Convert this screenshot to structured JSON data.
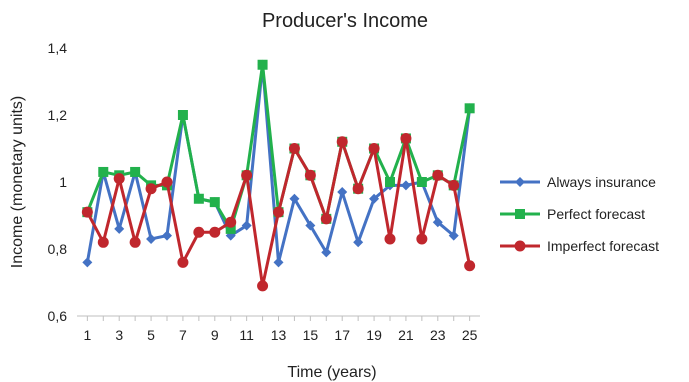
{
  "chart_data": {
    "type": "line",
    "title": "Producer's Income",
    "xlabel": "Time (years)",
    "ylabel": "Income (monetary units)",
    "ylim": [
      0.6,
      1.4
    ],
    "yticks": [
      0.6,
      0.8,
      1.0,
      1.2,
      1.4
    ],
    "ytick_labels": [
      "0,6",
      "0,8",
      "1",
      "1,2",
      "1,4"
    ],
    "x": [
      1,
      2,
      3,
      4,
      5,
      6,
      7,
      8,
      9,
      10,
      11,
      12,
      13,
      14,
      15,
      16,
      17,
      18,
      19,
      20,
      21,
      22,
      23,
      24,
      25
    ],
    "xtick_labels": [
      "1",
      "3",
      "5",
      "7",
      "9",
      "11",
      "13",
      "15",
      "17",
      "19",
      "21",
      "23",
      "25"
    ],
    "xtick_values": [
      1,
      3,
      5,
      7,
      9,
      11,
      13,
      15,
      17,
      19,
      21,
      23,
      25
    ],
    "grid": false,
    "legend_position": "right",
    "series": [
      {
        "name": "Always insurance",
        "color": "#4472C4",
        "marker": "diamond",
        "values": [
          0.76,
          1.03,
          0.86,
          1.03,
          0.83,
          0.84,
          1.2,
          0.95,
          0.94,
          0.84,
          0.87,
          1.35,
          0.76,
          0.95,
          0.87,
          0.79,
          0.97,
          0.82,
          0.95,
          0.99,
          0.99,
          1.0,
          0.88,
          0.84,
          1.22
        ]
      },
      {
        "name": "Perfect forecast",
        "color": "#22B14C",
        "marker": "square",
        "values": [
          0.91,
          1.03,
          1.02,
          1.03,
          0.99,
          0.99,
          1.2,
          0.95,
          0.94,
          0.86,
          1.02,
          1.35,
          0.91,
          1.1,
          1.02,
          0.89,
          1.12,
          0.98,
          1.1,
          1.0,
          1.13,
          1.0,
          1.02,
          0.99,
          1.22
        ]
      },
      {
        "name": "Imperfect forecast",
        "color": "#C0272D",
        "marker": "circle",
        "values": [
          0.91,
          0.82,
          1.01,
          0.82,
          0.98,
          1.0,
          0.76,
          0.85,
          0.85,
          0.88,
          1.02,
          0.69,
          0.91,
          1.1,
          1.02,
          0.89,
          1.12,
          0.98,
          1.1,
          0.83,
          1.13,
          0.83,
          1.02,
          0.99,
          0.75
        ]
      }
    ]
  }
}
